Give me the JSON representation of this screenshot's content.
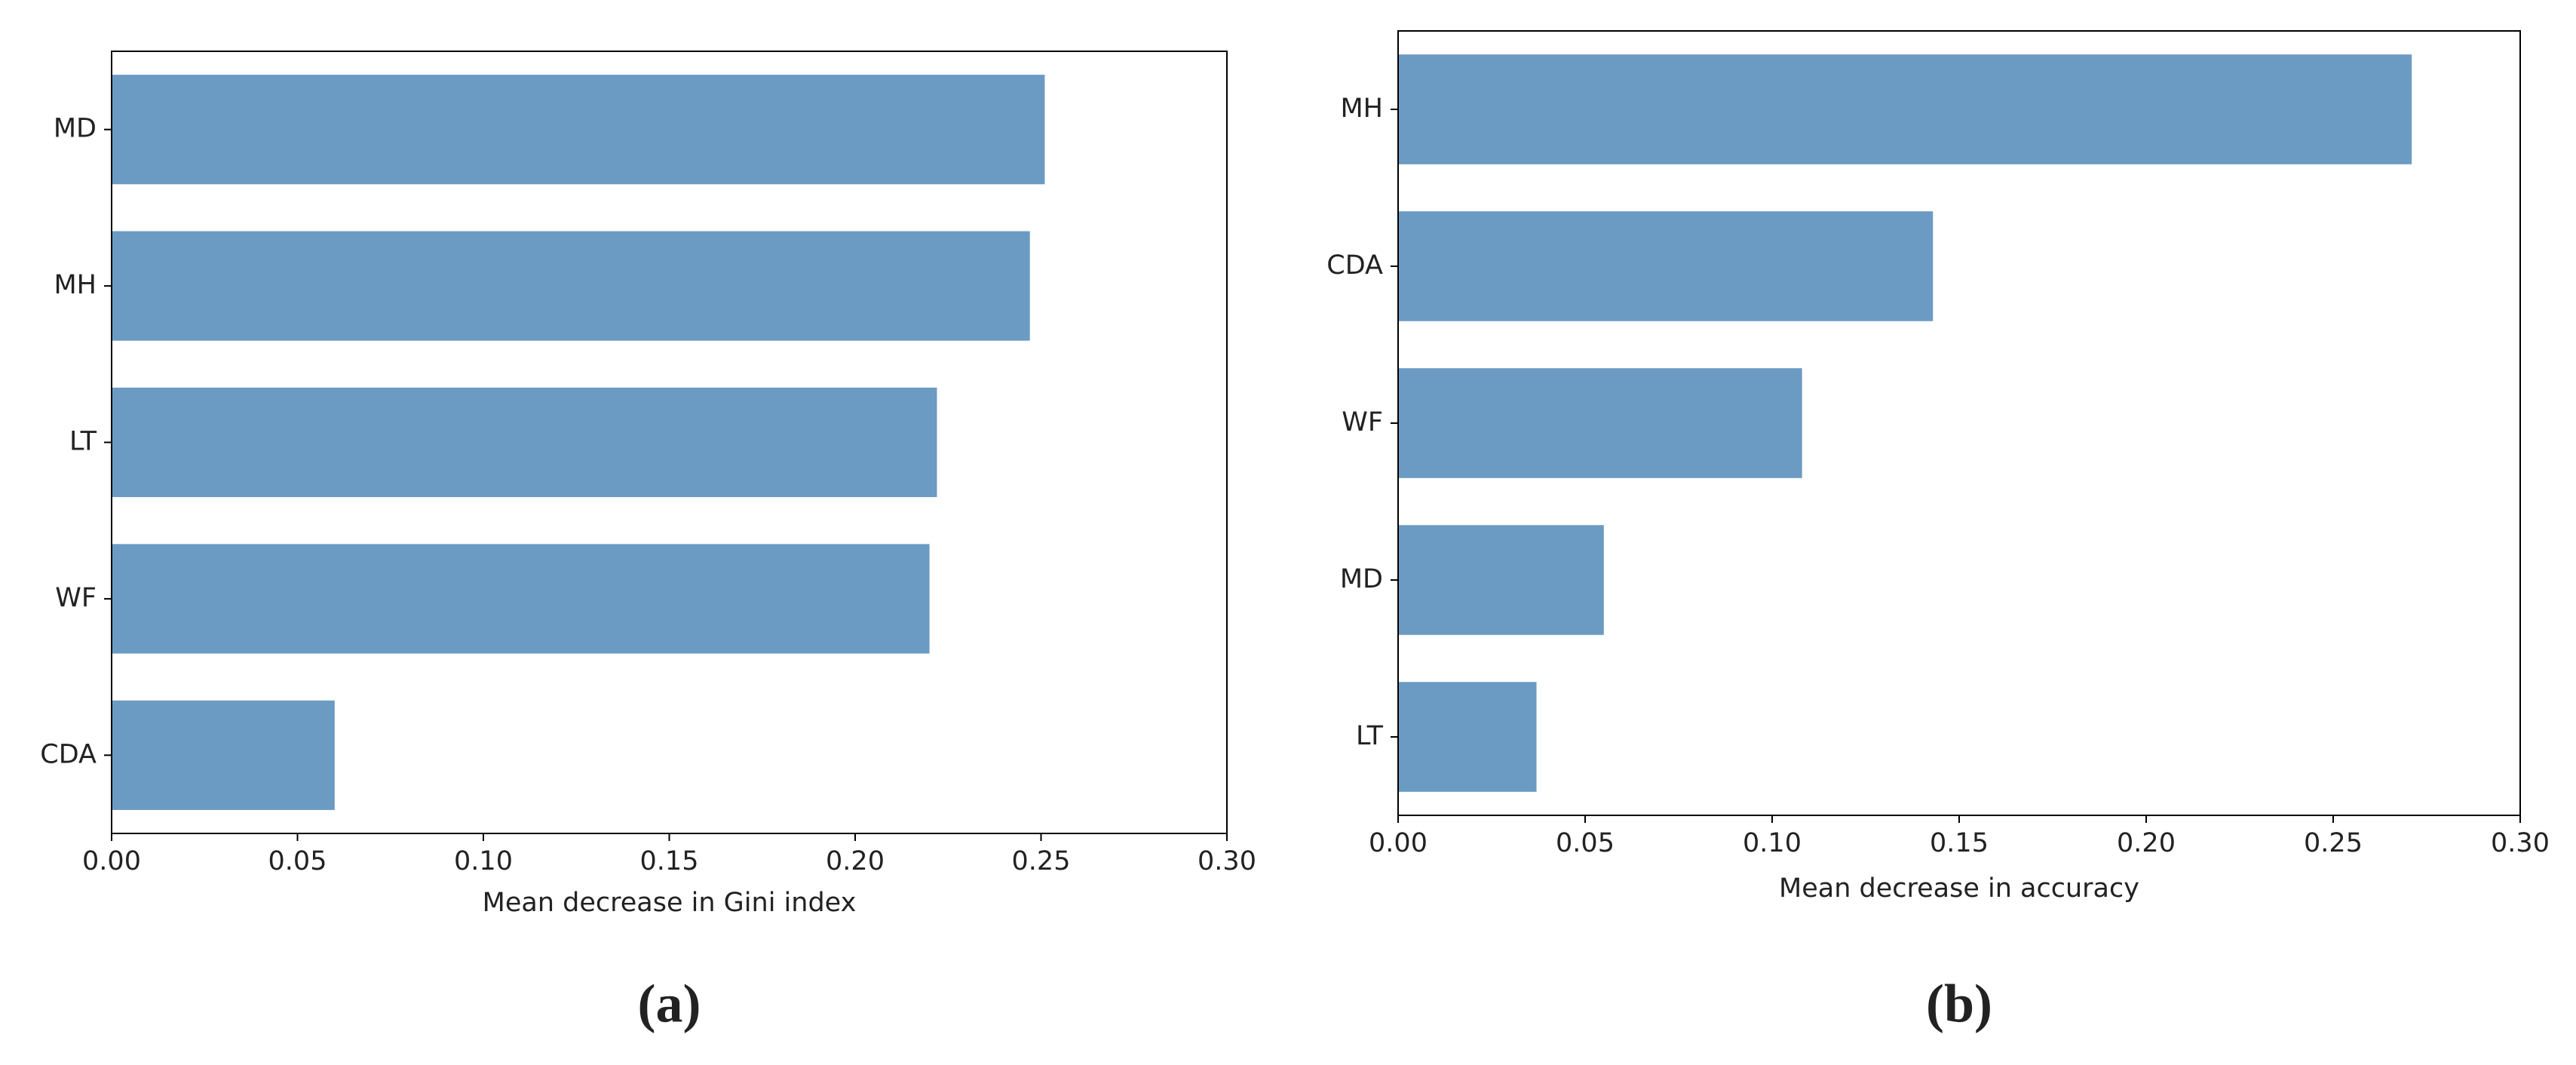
{
  "chart_data": [
    {
      "type": "barh",
      "caption": "(a)",
      "xlabel": "Mean decrease in Gini index",
      "categories": [
        "MD",
        "MH",
        "LT",
        "WF",
        "CDA"
      ],
      "values": [
        0.251,
        0.247,
        0.222,
        0.22,
        0.06
      ],
      "color": "#6b9bc3",
      "xlim": [
        0,
        0.3
      ],
      "xticks": [
        {
          "value": 0,
          "label": "0.00"
        },
        {
          "value": 0.05,
          "label": "0.05"
        },
        {
          "value": 0.1,
          "label": "0.10"
        },
        {
          "value": 0.15,
          "label": "0.15"
        },
        {
          "value": 0.2,
          "label": "0.20"
        },
        {
          "value": 0.25,
          "label": "0.25"
        },
        {
          "value": 0.3,
          "label": "0.30"
        }
      ]
    },
    {
      "type": "barh",
      "caption": "(b)",
      "xlabel": "Mean decrease in accuracy",
      "categories": [
        "MH",
        "CDA",
        "WF",
        "MD",
        "LT"
      ],
      "values": [
        0.271,
        0.143,
        0.108,
        0.055,
        0.037
      ],
      "color": "#6b9bc3",
      "xlim": [
        0,
        0.3
      ],
      "xticks": [
        {
          "value": 0,
          "label": "0.00"
        },
        {
          "value": 0.05,
          "label": "0.05"
        },
        {
          "value": 0.1,
          "label": "0.10"
        },
        {
          "value": 0.15,
          "label": "0.15"
        },
        {
          "value": 0.2,
          "label": "0.20"
        },
        {
          "value": 0.25,
          "label": "0.25"
        },
        {
          "value": 0.3,
          "label": "0.30"
        }
      ]
    }
  ]
}
